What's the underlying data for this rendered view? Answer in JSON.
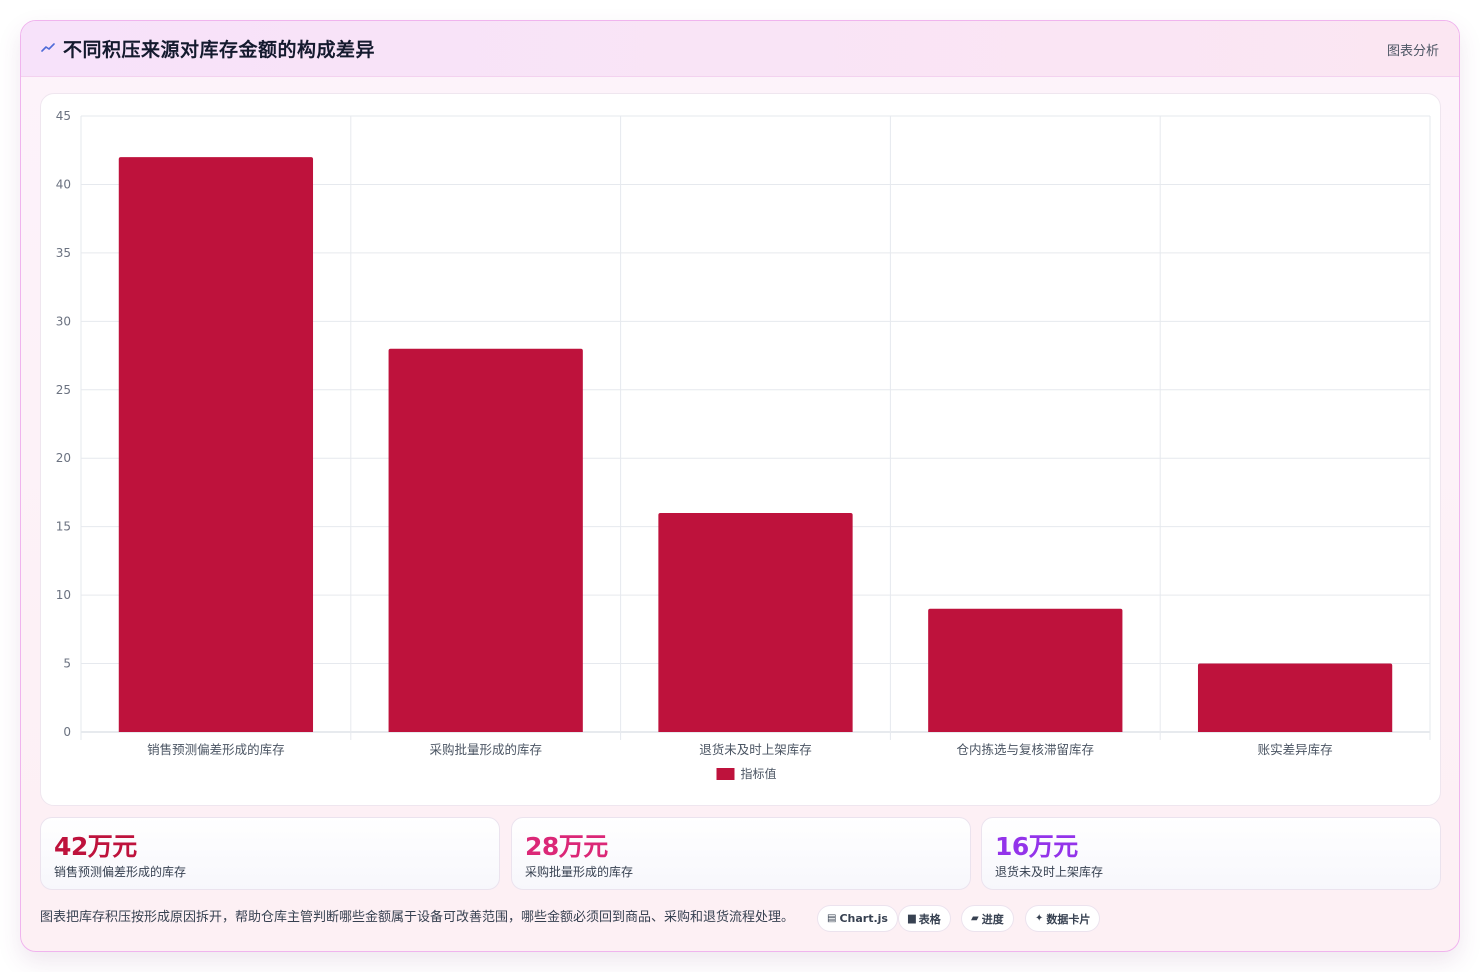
{
  "header": {
    "title": "不同积压来源对库存金额的构成差异",
    "tag": "图表分析"
  },
  "chart_data": {
    "type": "bar",
    "categories": [
      "销售预测偏差形成的库存",
      "采购批量形成的库存",
      "退货未及时上架库存",
      "仓内拣选与复核滞留库存",
      "账实差异库存"
    ],
    "series": [
      {
        "name": "指标值",
        "values": [
          42,
          28,
          16,
          9,
          5
        ],
        "color": "#be123c"
      }
    ],
    "ylim": [
      0,
      45
    ],
    "yticks": [
      0,
      5,
      10,
      15,
      20,
      25,
      30,
      35,
      40,
      45
    ],
    "grid": true,
    "legend": "bottom"
  },
  "stats": [
    {
      "value": "42万元",
      "label": "销售预测偏差形成的库存",
      "color": "#be123c"
    },
    {
      "value": "28万元",
      "label": "采购批量形成的库存",
      "color": "#db2777"
    },
    {
      "value": "16万元",
      "label": "退货未及时上架库存",
      "color": "#9333ea"
    }
  ],
  "footer": {
    "description": "图表把库存积压按形成原因拆开，帮助仓库主管判断哪些金额属于设备可改善范围，哪些金额必须回到商品、采购和退货流程处理。",
    "chips": [
      {
        "icon": "▤",
        "label": "Chart.js"
      },
      {
        "icon": "▆",
        "label": "表格"
      },
      {
        "icon": "▰",
        "label": "进度"
      },
      {
        "icon": "✦",
        "label": "数据卡片"
      }
    ]
  }
}
